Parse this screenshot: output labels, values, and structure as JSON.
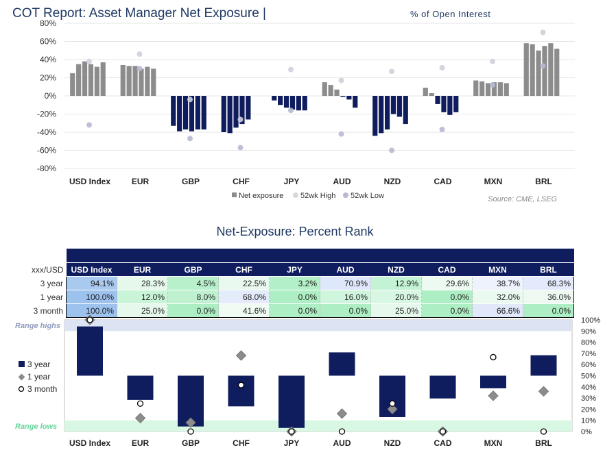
{
  "top_chart": {
    "title_main": "COT Report: Asset Manager Net Exposure |",
    "title_sub": "% of Open Interest",
    "legend": {
      "net": "Net exposure",
      "high": "52wk High",
      "low": "52wk Low"
    },
    "source": "Source: CME, LSEG",
    "colors": {
      "long": "#8c8c8c",
      "short": "#0f1d5e",
      "marker": "#b7b9d2"
    }
  },
  "chart_data": [
    {
      "type": "bar",
      "title": "COT Report: Asset Manager Net Exposure | % of Open Interest",
      "categories": [
        "USD Index",
        "EUR",
        "GBP",
        "CHF",
        "JPY",
        "AUD",
        "NZD",
        "CAD",
        "MXN",
        "BRL"
      ],
      "ylim": [
        -80,
        80
      ],
      "yticks": [
        "80%",
        "60%",
        "40%",
        "20%",
        "0%",
        "-20%",
        "-40%",
        "-60%",
        "-80%"
      ],
      "yticks_values": [
        80,
        60,
        40,
        20,
        0,
        -20,
        -40,
        -60,
        -80
      ],
      "series": [
        {
          "name": "Net exposure",
          "values": [
            [
              25,
              35,
              38,
              35,
              32,
              37
            ],
            [
              34,
              33,
              33,
              30,
              32,
              30
            ],
            [
              -33,
              -39,
              -37,
              -39,
              -37,
              -37
            ],
            [
              -40,
              -41,
              -35,
              -31,
              -26,
              null
            ],
            [
              -5,
              -10,
              -13,
              -15,
              -16,
              -16
            ],
            [
              15,
              12,
              7,
              -1,
              -4,
              -13
            ],
            [
              -44,
              -41,
              -37,
              -20,
              -23,
              -31
            ],
            [
              9,
              3,
              -9,
              -18,
              -21,
              -18
            ],
            [
              17,
              16,
              14,
              15,
              15,
              14
            ],
            [
              58,
              57,
              50,
              55,
              58,
              52
            ]
          ]
        },
        {
          "name": "52wk High",
          "values": [
            38,
            46,
            -4,
            -26,
            29,
            17,
            27,
            31,
            38,
            70
          ]
        },
        {
          "name": "52wk Low",
          "values": [
            -32,
            30,
            -47,
            -57,
            -16,
            -42,
            -60,
            -37,
            12,
            33
          ]
        }
      ]
    },
    {
      "type": "table",
      "title": "Net-Exposure: Percent Rank",
      "corner": "xxx/USD",
      "columns": [
        "USD Index",
        "EUR",
        "GBP",
        "CHF",
        "JPY",
        "AUD",
        "NZD",
        "CAD",
        "MXN",
        "BRL"
      ],
      "rows": [
        {
          "label": "3 year",
          "values": [
            "94.1%",
            "28.3%",
            "4.5%",
            "22.5%",
            "3.2%",
            "70.9%",
            "12.9%",
            "29.6%",
            "38.7%",
            "68.3%"
          ]
        },
        {
          "label": "1 year",
          "values": [
            "100.0%",
            "12.0%",
            "8.0%",
            "68.0%",
            "0.0%",
            "16.0%",
            "20.0%",
            "0.0%",
            "32.0%",
            "36.0%"
          ]
        },
        {
          "label": "3 month",
          "values": [
            "100.0%",
            "25.0%",
            "0.0%",
            "41.6%",
            "0.0%",
            "0.0%",
            "25.0%",
            "0.0%",
            "66.6%",
            "0.0%"
          ]
        }
      ],
      "cell_colors": [
        [
          "#a9c9ef",
          "#e6f7ec",
          "#b8f0cc",
          "#e9f9ef",
          "#b3efc8",
          "#dfe8fa",
          "#c3f2d4",
          "#edfaf2",
          "#eef2fc",
          "#e3eafb"
        ],
        [
          "#9dc2ee",
          "#c9f4d8",
          "#bff1d1",
          "#e4ebfb",
          "#aeeec4",
          "#d0f5dd",
          "#d8f7e3",
          "#aeeec4",
          "#eafaf0",
          "#eef9f2"
        ],
        [
          "#9dc2ee",
          "#e6f8ec",
          "#aeeec4",
          "#f0fbf4",
          "#aeeec4",
          "#aeeec4",
          "#e6f8ec",
          "#aeeec4",
          "#e1e8fa",
          "#aeeec4"
        ]
      ]
    },
    {
      "type": "bar",
      "categories": [
        "USD Index",
        "EUR",
        "GBP",
        "CHF",
        "JPY",
        "AUD",
        "NZD",
        "CAD",
        "MXN",
        "BRL"
      ],
      "ylim": [
        0,
        100
      ],
      "yticks": [
        "100%",
        "90%",
        "80%",
        "70%",
        "60%",
        "50%",
        "40%",
        "30%",
        "20%",
        "10%",
        "0%"
      ],
      "yticks_values": [
        100,
        90,
        80,
        70,
        60,
        50,
        40,
        30,
        20,
        10,
        0
      ],
      "baseline": 50,
      "bands": {
        "high": "Range highs",
        "low": "Range lows"
      },
      "series": [
        {
          "name": "3 year",
          "values": [
            94.1,
            28.3,
            4.5,
            22.5,
            3.2,
            70.9,
            12.9,
            29.6,
            38.7,
            68.3
          ]
        },
        {
          "name": "1 year",
          "values": [
            100,
            12,
            8,
            68,
            0,
            16,
            20,
            0,
            32,
            36
          ]
        },
        {
          "name": "3 month",
          "values": [
            100,
            25,
            0,
            41.6,
            0,
            0,
            25,
            0,
            66.6,
            0
          ]
        }
      ]
    }
  ]
}
